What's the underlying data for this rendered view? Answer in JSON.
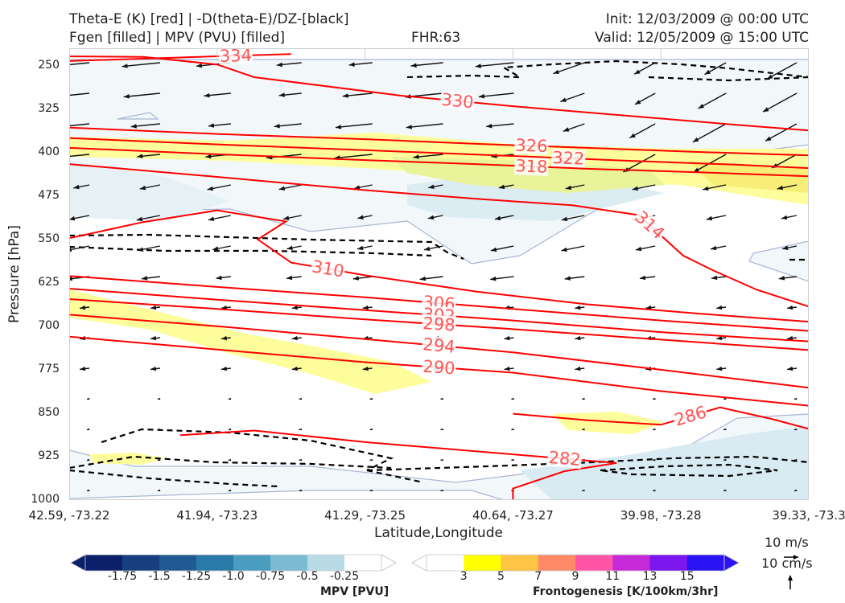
{
  "header": {
    "title_line1": "Theta-E (K) [red] | -D(theta-E)/DZ-[black]",
    "title_line2": "Fgen [filled] | MPV (PVU) [filled]",
    "fhr": "FHR:63",
    "init": "Init: 12/03/2009 @ 00:00 UTC",
    "valid": "Valid: 12/05/2009 @ 15:00 UTC"
  },
  "chart_data": {
    "type": "contour",
    "ylabel": "Pressure [hPa]",
    "xlabel": "Latitude,Longitude",
    "yticks": [
      "250",
      "325",
      "400",
      "475",
      "550",
      "625",
      "700",
      "775",
      "850",
      "925",
      "1000"
    ],
    "ylim": [
      1000,
      220
    ],
    "xticks": [
      "42.59, -73.22",
      "41.94, -73.23",
      "41.29, -73.25",
      "40.64, -73.27",
      "39.98, -73.28",
      "39.33, -73.3"
    ],
    "theta_e_contours": [
      {
        "level": 334,
        "label": "334",
        "pts": [
          [
            0,
            242
          ],
          [
            0.15,
            236
          ],
          [
            0.3,
            230
          ]
        ]
      },
      {
        "level": 330,
        "label": "330",
        "pts": [
          [
            0,
            234
          ],
          [
            0.1,
            235
          ],
          [
            0.2,
            248
          ],
          [
            0.25,
            270
          ],
          [
            0.45,
            302
          ],
          [
            0.6,
            320
          ],
          [
            0.75,
            336
          ],
          [
            0.9,
            352
          ],
          [
            1,
            362
          ]
        ]
      },
      {
        "level": 326,
        "label": "326",
        "pts": [
          [
            0,
            357
          ],
          [
            0.2,
            368
          ],
          [
            0.4,
            377
          ],
          [
            0.55,
            385
          ],
          [
            0.7,
            392
          ],
          [
            0.85,
            399
          ],
          [
            1,
            405
          ]
        ]
      },
      {
        "level": 322,
        "label": "322",
        "pts": [
          [
            0,
            375
          ],
          [
            0.2,
            386
          ],
          [
            0.4,
            396
          ],
          [
            0.6,
            406
          ],
          [
            0.75,
            414
          ],
          [
            0.9,
            421
          ],
          [
            1,
            427
          ]
        ]
      },
      {
        "level": 318,
        "label": "318",
        "pts": [
          [
            0,
            392
          ],
          [
            0.2,
            403
          ],
          [
            0.4,
            413
          ],
          [
            0.55,
            420
          ],
          [
            0.7,
            428
          ],
          [
            0.85,
            434
          ],
          [
            1,
            441
          ]
        ]
      },
      {
        "level": 314,
        "label": "314",
        "pts": [
          [
            0,
            420
          ],
          [
            0.2,
            442
          ],
          [
            0.4,
            465
          ],
          [
            0.55,
            480
          ],
          [
            0.68,
            491
          ],
          [
            0.77,
            508
          ],
          [
            0.8,
            543
          ],
          [
            0.83,
            578
          ],
          [
            0.87,
            603
          ],
          [
            0.93,
            637
          ],
          [
            1,
            666
          ]
        ]
      },
      {
        "level": 310,
        "label": "310",
        "pts": [
          [
            0,
            548
          ],
          [
            0.1,
            520
          ],
          [
            0.2,
            500
          ],
          [
            0.293,
            519
          ],
          [
            0.255,
            550
          ],
          [
            0.3,
            590
          ],
          [
            0.4,
            612
          ],
          [
            0.55,
            640
          ],
          [
            0.7,
            662
          ],
          [
            0.85,
            678
          ],
          [
            1,
            692
          ]
        ]
      },
      {
        "level": 306,
        "label": "306",
        "pts": [
          [
            0,
            613
          ],
          [
            0.2,
            632
          ],
          [
            0.4,
            650
          ],
          [
            0.6,
            670
          ],
          [
            0.8,
            690
          ],
          [
            1,
            708
          ]
        ]
      },
      {
        "level": 302,
        "label": "302",
        "pts": [
          [
            0,
            635
          ],
          [
            0.2,
            654
          ],
          [
            0.4,
            672
          ],
          [
            0.6,
            690
          ],
          [
            0.8,
            710
          ],
          [
            1,
            726
          ]
        ]
      },
      {
        "level": 298,
        "label": "298",
        "pts": [
          [
            0,
            653
          ],
          [
            0.2,
            670
          ],
          [
            0.4,
            688
          ],
          [
            0.6,
            705
          ],
          [
            0.8,
            723
          ],
          [
            1,
            741
          ]
        ]
      },
      {
        "level": 294,
        "label": "294",
        "pts": [
          [
            0,
            680
          ],
          [
            0.2,
            700
          ],
          [
            0.4,
            722
          ],
          [
            0.6,
            745
          ],
          [
            0.8,
            775
          ],
          [
            1,
            806
          ]
        ]
      },
      {
        "level": 290,
        "label": "290",
        "pts": [
          [
            0,
            718
          ],
          [
            0.2,
            740
          ],
          [
            0.4,
            762
          ],
          [
            0.6,
            780
          ],
          [
            0.8,
            812
          ],
          [
            1,
            837
          ]
        ]
      },
      {
        "level": 286,
        "label": "286",
        "pts": [
          [
            0.6,
            851
          ],
          [
            0.7,
            862
          ],
          [
            0.8,
            870
          ],
          [
            0.88,
            840
          ],
          [
            0.95,
            860
          ],
          [
            1,
            877
          ]
        ]
      },
      {
        "level": 282,
        "label": "282",
        "pts": [
          [
            0.15,
            888
          ],
          [
            0.25,
            880
          ],
          [
            0.4,
            900
          ],
          [
            0.6,
            921
          ],
          [
            0.74,
            936
          ],
          [
            0.67,
            950
          ],
          [
            0.6,
            980
          ],
          [
            0.6,
            1000
          ]
        ]
      }
    ],
    "mpv_legend": {
      "title": "MPV [PVU]",
      "labels": [
        "-1.75",
        "-1.5",
        "-1.25",
        "-1.0",
        "-0.75",
        "-0.5",
        "-0.25"
      ],
      "colors": [
        "#0c1f6b",
        "#173f80",
        "#1f5a92",
        "#2a7aa8",
        "#4b9dc0",
        "#7bbcd4",
        "#b8dbe6",
        "#ffffff"
      ]
    },
    "fgen_legend": {
      "title": "Frontogenesis [K/100km/3hr]",
      "labels": [
        "3",
        "5",
        "7",
        "9",
        "11",
        "13",
        "15"
      ],
      "colors": [
        "#ffffff",
        "#ffff00",
        "#ffc444",
        "#ff8a6a",
        "#ff55a6",
        "#c62ad8",
        "#7b16ee",
        "#2a14f5"
      ]
    },
    "vector_reference": {
      "top": "10 m/s",
      "bottom": "10 cm/s"
    },
    "colors": {
      "theta_e": "#ff0000",
      "label": "#ff5555",
      "dthetae": "#000000",
      "mpv_outline": "#a7b5d4"
    }
  }
}
